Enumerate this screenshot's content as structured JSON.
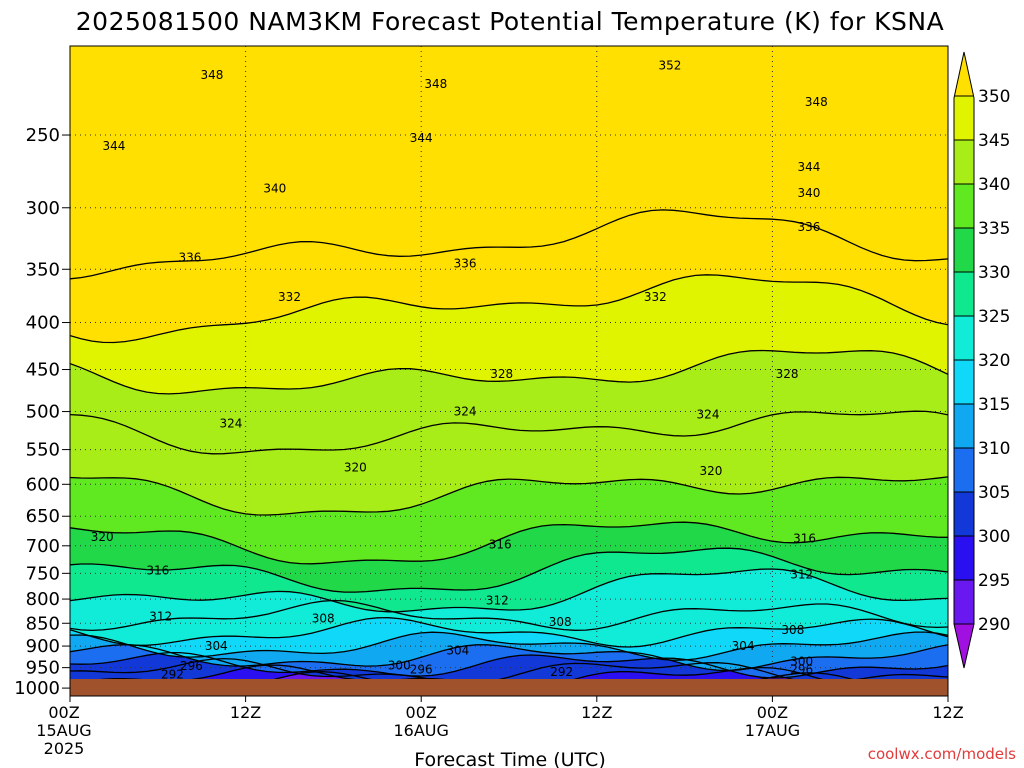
{
  "chart_data": {
    "type": "heatmap",
    "title": "2025081500 NAM3KM Forecast Potential Temperature (K) for KSNA",
    "xlabel": "Forecast Time (UTC)",
    "ylabel": "",
    "y_scale": "log",
    "y_reversed": true,
    "ylim": [
      1020,
      200
    ],
    "y_ticks": [
      "250",
      "300",
      "350",
      "400",
      "450",
      "500",
      "550",
      "600",
      "650",
      "700",
      "750",
      "800",
      "850",
      "900",
      "950",
      "1000"
    ],
    "x_ticks": [
      {
        "top": "00Z",
        "mid": "15AUG",
        "bot": "2025"
      },
      {
        "top": "12Z",
        "mid": "",
        "bot": ""
      },
      {
        "top": "00Z",
        "mid": "16AUG",
        "bot": ""
      },
      {
        "top": "12Z",
        "mid": "",
        "bot": ""
      },
      {
        "top": "00Z",
        "mid": "17AUG",
        "bot": ""
      },
      {
        "top": "12Z",
        "mid": "",
        "bot": ""
      }
    ],
    "xlim_hours": [
      0,
      60
    ],
    "colorbar": {
      "ticks": [
        "290",
        "295",
        "300",
        "305",
        "310",
        "315",
        "320",
        "325",
        "330",
        "335",
        "340",
        "345",
        "350"
      ],
      "colors": [
        "#a010e0",
        "#6a18f0",
        "#2a10f0",
        "#1238d8",
        "#1c6ef0",
        "#10a8f0",
        "#10d8f8",
        "#10ecd8",
        "#10e890",
        "#20d848",
        "#60e820",
        "#a8ec18",
        "#e0f400",
        "#ffe000"
      ]
    },
    "contour_levels": [
      292,
      296,
      300,
      304,
      308,
      312,
      316,
      320,
      324,
      328,
      332,
      336,
      340,
      344,
      348,
      352
    ],
    "contour_labels": [
      {
        "value": "348",
        "hour": 9.7,
        "p": 215
      },
      {
        "value": "348",
        "hour": 25,
        "p": 220
      },
      {
        "value": "352",
        "hour": 41,
        "p": 210
      },
      {
        "value": "348",
        "hour": 51,
        "p": 230
      },
      {
        "value": "344",
        "hour": 3,
        "p": 257
      },
      {
        "value": "344",
        "hour": 24,
        "p": 252
      },
      {
        "value": "344",
        "hour": 50.5,
        "p": 271
      },
      {
        "value": "340",
        "hour": 14,
        "p": 286
      },
      {
        "value": "340",
        "hour": 50.5,
        "p": 289
      },
      {
        "value": "336",
        "hour": 50.5,
        "p": 315
      },
      {
        "value": "336",
        "hour": 8.2,
        "p": 340
      },
      {
        "value": "336",
        "hour": 27,
        "p": 345
      },
      {
        "value": "332",
        "hour": 15,
        "p": 375
      },
      {
        "value": "332",
        "hour": 40,
        "p": 375
      },
      {
        "value": "328",
        "hour": 29.5,
        "p": 455
      },
      {
        "value": "328",
        "hour": 49,
        "p": 455
      },
      {
        "value": "324",
        "hour": 11,
        "p": 515
      },
      {
        "value": "324",
        "hour": 27,
        "p": 500
      },
      {
        "value": "324",
        "hour": 43.6,
        "p": 504
      },
      {
        "value": "320",
        "hour": 19.5,
        "p": 575
      },
      {
        "value": "320",
        "hour": 43.8,
        "p": 580
      },
      {
        "value": "320",
        "hour": 2.2,
        "p": 685
      },
      {
        "value": "316",
        "hour": 29.4,
        "p": 698
      },
      {
        "value": "316",
        "hour": 50.2,
        "p": 687
      },
      {
        "value": "316",
        "hour": 6,
        "p": 745
      },
      {
        "value": "312",
        "hour": 29.2,
        "p": 803
      },
      {
        "value": "312",
        "hour": 50,
        "p": 752
      },
      {
        "value": "312",
        "hour": 6.2,
        "p": 836
      },
      {
        "value": "308",
        "hour": 17.3,
        "p": 840
      },
      {
        "value": "308",
        "hour": 33.5,
        "p": 847
      },
      {
        "value": "308",
        "hour": 49.4,
        "p": 865
      },
      {
        "value": "304",
        "hour": 10,
        "p": 900
      },
      {
        "value": "304",
        "hour": 26.5,
        "p": 910
      },
      {
        "value": "304",
        "hour": 46,
        "p": 900
      },
      {
        "value": "300",
        "hour": 22.5,
        "p": 945
      },
      {
        "value": "300",
        "hour": 50,
        "p": 935
      },
      {
        "value": "296",
        "hour": 8.3,
        "p": 946
      },
      {
        "value": "296",
        "hour": 24,
        "p": 955
      },
      {
        "value": "296",
        "hour": 50,
        "p": 955
      },
      {
        "value": "292",
        "hour": 7,
        "p": 967
      },
      {
        "value": "292",
        "hour": 33.6,
        "p": 960
      }
    ],
    "ground_color": "#a0522d",
    "credit": "coolwx.com/models"
  }
}
